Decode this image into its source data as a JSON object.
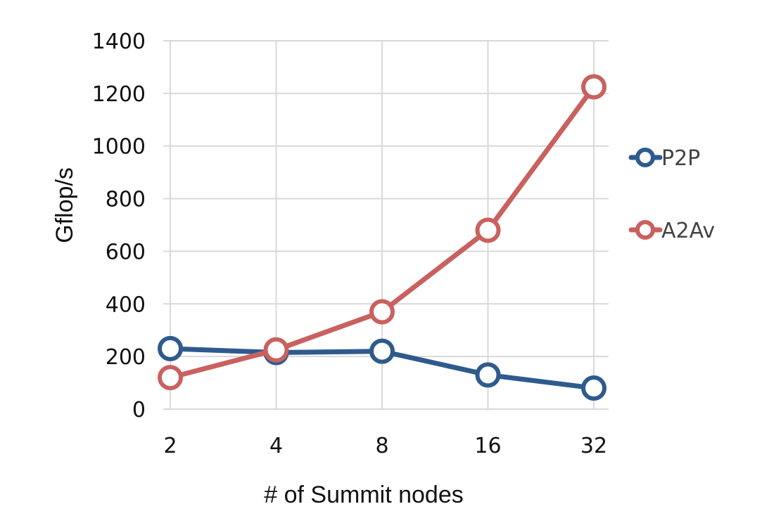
{
  "chart_data": {
    "type": "line",
    "title": "",
    "xlabel": "# of Summit nodes",
    "ylabel": "Gflop/s",
    "categories": [
      "2",
      "4",
      "8",
      "16",
      "32"
    ],
    "ylim": [
      0,
      1400
    ],
    "yticks": [
      "0",
      "200",
      "400",
      "600",
      "800",
      "1000",
      "1200",
      "1400"
    ],
    "grid": true,
    "legend_position": "right",
    "series": [
      {
        "name": "P2P",
        "color": "#2e5a8e",
        "values": [
          230,
          215,
          220,
          130,
          80
        ]
      },
      {
        "name": "A2Av",
        "color": "#c9615f",
        "values": [
          120,
          225,
          370,
          680,
          1225
        ]
      }
    ]
  }
}
